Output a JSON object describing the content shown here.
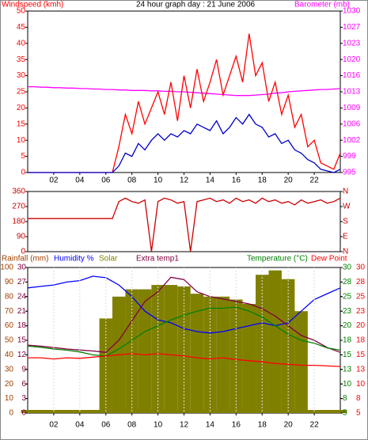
{
  "chart_data": [
    {
      "type": "line",
      "ylabel": "Windspeed (kmh)",
      "title": "24 hour graph day : 21 June 2006",
      "y2label": "Barometer (mb)",
      "x": [
        0,
        0.5,
        1,
        1.5,
        2,
        2.5,
        3,
        3.5,
        4,
        4.5,
        5,
        5.5,
        6,
        6.5,
        7,
        7.5,
        8,
        8.5,
        9,
        9.5,
        10,
        10.5,
        11,
        11.5,
        12,
        12.5,
        13,
        13.5,
        14,
        14.5,
        15,
        15.5,
        16,
        16.5,
        17,
        17.5,
        18,
        18.5,
        19,
        19.5,
        20,
        20.5,
        21,
        21.5,
        22,
        22.5,
        23,
        23.5,
        24
      ],
      "xlim": [
        0,
        24
      ],
      "xticks": [
        {
          "value": 2,
          "label": "02"
        },
        {
          "value": 4,
          "label": "04"
        },
        {
          "value": 6,
          "label": "06"
        },
        {
          "value": 8,
          "label": "08"
        },
        10,
        12,
        14,
        16,
        18,
        20,
        22
      ],
      "ylim": [
        0,
        50
      ],
      "yticks": [
        0,
        5,
        10,
        15,
        20,
        25,
        30,
        35,
        40,
        45,
        50
      ],
      "y2lim": [
        995,
        1030
      ],
      "y2ticks": [
        995,
        {
          "value": 998.5,
          "label": "999"
        },
        1002,
        {
          "value": 1005.5,
          "label": "1006"
        },
        1009,
        {
          "value": 1012.5,
          "label": "1013"
        },
        1016,
        {
          "value": 1019.5,
          "label": "1020"
        },
        1023,
        {
          "value": 1026.5,
          "label": "1027"
        },
        1030
      ],
      "series": [
        {
          "color": "#ff00ff",
          "axis": "y2",
          "values": [
            1013.6,
            1013.6,
            1013.5,
            1013.5,
            1013.4,
            1013.4,
            1013.3,
            1013.3,
            1013.2,
            1013.2,
            1013.1,
            1013.1,
            1013,
            1013,
            1012.9,
            1012.9,
            1012.8,
            1012.8,
            1012.8,
            1012.7,
            1012.7,
            1012.6,
            1012.6,
            1012.5,
            1012.5,
            1012.4,
            1012.3,
            1012.2,
            1012.1,
            1012,
            1011.9,
            1011.8,
            1011.7,
            1011.7,
            1011.7,
            1011.8,
            1011.9,
            1012,
            1012.2,
            1012.3,
            1012.5,
            1012.6,
            1012.7,
            1012.8,
            1012.9,
            1013,
            1013,
            1013.1,
            1013.2
          ]
        },
        {
          "color": "#ff0000",
          "values": [
            0,
            0,
            0,
            0,
            0,
            0,
            0,
            0,
            0,
            0,
            0,
            0,
            0,
            0,
            8,
            18,
            12,
            22,
            15,
            20,
            25,
            18,
            28,
            16,
            30,
            20,
            32,
            22,
            28,
            35,
            24,
            30,
            36,
            28,
            43,
            30,
            34,
            22,
            28,
            18,
            24,
            14,
            18,
            8,
            10,
            3,
            2,
            1,
            6
          ]
        },
        {
          "color": "#0000cc",
          "values": [
            0,
            0,
            0,
            0,
            0,
            0,
            0,
            0,
            0,
            0,
            0,
            0,
            0,
            0,
            2,
            6,
            5,
            9,
            7,
            10,
            12,
            10,
            12,
            11,
            13,
            12,
            15,
            14,
            13,
            16,
            12,
            14,
            17,
            15,
            18,
            15,
            14,
            11,
            12,
            9,
            10,
            7,
            6,
            4,
            3,
            1,
            0.5,
            0,
            1
          ]
        }
      ]
    },
    {
      "type": "line",
      "x": [
        0,
        0.5,
        1,
        1.5,
        2,
        2.5,
        3,
        3.5,
        4,
        4.5,
        5,
        5.5,
        6,
        6.5,
        7,
        7.5,
        8,
        8.5,
        9,
        9.5,
        10,
        10.5,
        11,
        11.5,
        12,
        12.5,
        13,
        13.5,
        14,
        14.5,
        15,
        15.5,
        16,
        16.5,
        17,
        17.5,
        18,
        18.5,
        19,
        19.5,
        20,
        20.5,
        21,
        21.5,
        22,
        22.5,
        23,
        23.5,
        24
      ],
      "xlim": [
        0,
        24
      ],
      "ylim": [
        0,
        360
      ],
      "yticks": [
        0,
        90,
        180,
        270,
        360
      ],
      "y2lim": [
        0,
        360
      ],
      "y2ticks": [
        {
          "value": 0,
          "label": "N"
        },
        {
          "value": 90,
          "label": "E"
        },
        {
          "value": 180,
          "label": "S"
        },
        {
          "value": 270,
          "label": "W"
        },
        {
          "value": 360,
          "label": "N"
        }
      ],
      "series": [
        {
          "color": "#cc0000",
          "values": [
            198,
            198,
            198,
            198,
            198,
            198,
            198,
            198,
            198,
            198,
            198,
            198,
            198,
            198,
            300,
            320,
            300,
            290,
            310,
            0,
            300,
            320,
            310,
            290,
            300,
            0,
            300,
            310,
            320,
            300,
            310,
            290,
            320,
            300,
            310,
            290,
            320,
            300,
            310,
            290,
            300,
            280,
            310,
            290,
            300,
            310,
            290,
            300,
            320
          ]
        }
      ]
    },
    {
      "type": "line",
      "x": [
        0,
        1,
        2,
        3,
        4,
        5,
        6,
        7,
        8,
        9,
        10,
        11,
        12,
        13,
        14,
        15,
        16,
        17,
        18,
        19,
        20,
        21,
        22,
        23,
        24
      ],
      "xlim": [
        0,
        24
      ],
      "xticks": [
        {
          "value": 2,
          "label": "02"
        },
        {
          "value": 4,
          "label": "04"
        },
        {
          "value": 6,
          "label": "06"
        },
        {
          "value": 8,
          "label": "08"
        },
        10,
        12,
        14,
        16,
        18,
        20,
        22
      ],
      "xgrid": true,
      "ylim": [
        0,
        100
      ],
      "yticks": [
        0,
        10,
        20,
        30,
        40,
        50,
        60,
        70,
        80,
        90,
        100
      ],
      "y4lim": [
        0,
        30
      ],
      "y4ticks": [
        0,
        3,
        6,
        9,
        12,
        15,
        18,
        21,
        24,
        27,
        30
      ],
      "y2lim": [
        5,
        30
      ],
      "y2ticks": [
        5,
        {
          "value": 7.5,
          "label": "8"
        },
        10,
        {
          "value": 12.5,
          "label": "13"
        },
        15,
        {
          "value": 17.5,
          "label": "18"
        },
        20,
        {
          "value": 22.5,
          "label": "23"
        },
        25,
        {
          "value": 27.5,
          "label": "28"
        },
        30
      ],
      "y3lim": [
        5,
        30
      ],
      "y3ticks": [
        5,
        {
          "value": 7.5,
          "label": "8"
        },
        10,
        {
          "value": 12.5,
          "label": "13"
        },
        15,
        {
          "value": 17.5,
          "label": "18"
        },
        20,
        {
          "value": 22.5,
          "label": "23"
        },
        25,
        {
          "value": 27.5,
          "label": "28"
        },
        30
      ],
      "series": [
        {
          "name": "Rainfall (mm)",
          "color": "#a04000",
          "type": "bar",
          "axis": "y",
          "values": [
            0,
            0,
            0,
            0,
            0,
            0,
            0,
            0,
            0,
            0,
            0,
            0,
            0,
            0,
            0,
            0,
            0,
            0,
            0,
            0,
            0,
            0,
            0,
            0,
            0
          ]
        },
        {
          "name": "Humidity %",
          "color": "#0000ff",
          "axis": "y",
          "values": [
            86,
            87,
            88,
            90,
            91,
            94,
            93,
            88,
            80,
            70,
            64,
            62,
            58,
            56,
            55,
            56,
            58,
            60,
            62,
            60,
            62,
            70,
            78,
            82,
            86
          ]
        },
        {
          "name": "Solar",
          "color": "#808000",
          "type": "bar",
          "axis": "y",
          "values": [
            0,
            0,
            0,
            0,
            0,
            0,
            65,
            80,
            85,
            85,
            88,
            88,
            87,
            82,
            80,
            80,
            78,
            75,
            95,
            98,
            92,
            70,
            0,
            0,
            0
          ]
        },
        {
          "name": "Extra temp1",
          "color": "#800040",
          "axis": "y4",
          "values": [
            14,
            13.8,
            13.5,
            13.2,
            13,
            12.8,
            12.5,
            15,
            19,
            23,
            25,
            28,
            27.5,
            25,
            24,
            23.5,
            23,
            22.5,
            21.5,
            20,
            18,
            16,
            15,
            13.5,
            12.5
          ]
        },
        {
          "name": "Temperature (°C)",
          "color": "#008000",
          "axis": "y2",
          "values": [
            16.5,
            16.3,
            16,
            15.8,
            15.5,
            15,
            14.8,
            16,
            17.5,
            19,
            20,
            21,
            21.8,
            22.5,
            23,
            23,
            23.2,
            22.5,
            21.5,
            20,
            18.5,
            17.5,
            17,
            16.2,
            15.8
          ]
        },
        {
          "name": "Dew Point",
          "color": "#ff0000",
          "axis": "y3",
          "values": [
            14.5,
            14.5,
            14.3,
            14.5,
            14.4,
            14.6,
            14.8,
            15,
            15.2,
            15,
            15.2,
            15,
            14.8,
            14.5,
            14.3,
            14.5,
            14.2,
            14,
            13.8,
            13.5,
            13.4,
            13.2,
            13.2,
            13.1,
            13
          ]
        }
      ]
    }
  ]
}
